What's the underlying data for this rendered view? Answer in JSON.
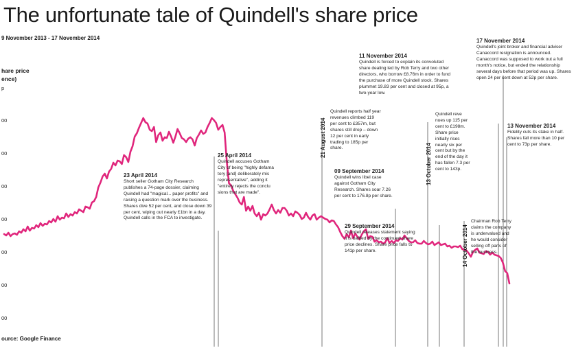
{
  "header": {
    "title": "The unfortunate tale of Quindell's share price",
    "date_range": "9 November 2013 - 17 November 2014"
  },
  "source": "ource: Google Finance",
  "chart_data": {
    "type": "line",
    "ylabel": "hare price\nence)",
    "y_ticks": [
      "p",
      "00",
      "00",
      "00",
      "00",
      "00",
      "00",
      "00",
      "00"
    ],
    "series": [
      {
        "color": "#e0267c",
        "values": [
          26,
          24,
          28,
          23,
          26,
          27,
          25,
          30,
          28,
          33,
          30,
          37,
          31,
          35,
          34,
          39,
          36,
          42,
          38,
          41,
          40,
          45,
          43,
          48,
          44,
          52,
          47,
          50,
          49,
          56,
          51,
          55,
          53,
          58,
          56,
          62,
          60,
          58,
          66,
          65,
          63,
          72,
          74,
          80,
          94,
          101,
          110,
          114,
          107,
          117,
          121,
          130,
          126,
          133,
          132,
          128,
          141,
          138,
          131,
          146,
          154,
          168,
          173,
          181,
          188,
          195,
          189,
          187,
          178,
          176,
          182,
          160,
          170,
          174,
          162,
          167,
          166,
          175,
          168,
          159,
          168,
          179,
          173,
          166,
          164,
          160,
          165,
          167,
          164,
          155,
          166,
          171,
          177,
          172,
          174,
          182,
          188,
          195,
          192,
          188,
          178,
          182,
          185,
          174,
          132,
          100,
          97,
          89,
          84,
          79,
          72,
          69,
          80,
          60,
          66,
          60,
          67,
          56,
          52,
          57,
          47,
          55,
          53,
          56,
          62,
          69,
          61,
          56,
          61,
          57,
          64,
          64,
          60,
          53,
          56,
          52,
          59,
          57,
          54,
          48,
          50,
          57,
          51,
          47,
          53,
          55,
          47,
          50,
          52,
          50,
          48,
          47,
          43,
          46,
          45,
          40,
          36,
          29,
          23,
          19,
          26,
          21,
          31,
          20,
          27,
          22,
          18,
          25,
          30,
          33,
          19,
          23,
          22,
          15,
          17,
          14,
          15,
          12,
          14,
          20,
          13,
          16,
          13,
          17,
          16,
          20,
          18,
          24,
          20,
          16,
          14,
          14,
          17,
          13,
          12,
          12,
          16,
          13,
          11,
          12,
          15,
          10,
          12,
          14,
          10,
          11,
          12,
          8,
          9,
          6,
          8,
          8,
          7,
          9,
          4,
          3,
          2,
          -2,
          -7,
          0,
          3,
          5,
          -1,
          -2,
          -3,
          1,
          0,
          -4,
          -1,
          -4,
          -5,
          -6,
          -9,
          -16,
          -28,
          -31,
          -46
        ]
      }
    ],
    "annotations": [
      {
        "id": "apr23",
        "date": "23 April 2014",
        "text": "Short seller Gotham City Research publishes a 74-page dossier, claiming Quindell had \"magical... paper profits\" and raising a question mark over the business. Shares dive 52 per cent, and close down 39 per cent, wiping out nearly £1bn in a day. Quindell calls in the FCA to investigate."
      },
      {
        "id": "apr25",
        "date": "25 April 2014",
        "text": "Quindell accuses Gotham City of being \"highly defama tory [and] deliberately mis representative\", adding it \"entirely rejects the conclu sions that are made\"."
      },
      {
        "id": "aug21",
        "date": "21 August 2014",
        "text": "Quindell reports half year revenues climbed 119 per cent to £357m, but shares still drop – down 12 per cent in early trading to 185p per share."
      },
      {
        "id": "sep09",
        "date": "09 September 2014",
        "text": "Quindell wins libel case against Gotham City Research. Shares soar 7.26 per cent to 176.8p per share."
      },
      {
        "id": "sep29",
        "date": "29 September 2014",
        "text": "Quindell releases statement saying it is baffled by the continued share price declines. Share price falls to 141p per share."
      },
      {
        "id": "oct13",
        "date": "13 October 2014",
        "text": "Quindell reve nues up 115 per cent to £198m. Share price initially rises nearly six per cent but by the end of the day it has fallen 7.3 per cent to 143p."
      },
      {
        "id": "oct14",
        "date": "14 October 2014",
        "text": "Chairman Rob Terry claims the company is undervalued and he would consider selling off parts of the business."
      },
      {
        "id": "nov11",
        "date": "11 November 2014",
        "text": "Quindell is forced to explain its convoluted share dealing led by Rob Terry and two other directors, who borrow £8.76m in order to fund the purchase of more Quindell stock. Shares plummet 19.83 per cent and closed at 95p, a two-year low."
      },
      {
        "id": "nov13",
        "date": "13 November 2014",
        "text": "Fidelity cuts its stake in half. Shares fall more than 10 per cent to 73p per share."
      },
      {
        "id": "nov17",
        "date": "17 November 2014",
        "text": "Quindell's joint broker and financial adviser Canaccord resignation is announced. Canaccord was supposed to work out a full month's notice, but ended the relationship several days before that period was up. Shares open 24 per cent down at 52p per share."
      }
    ]
  }
}
